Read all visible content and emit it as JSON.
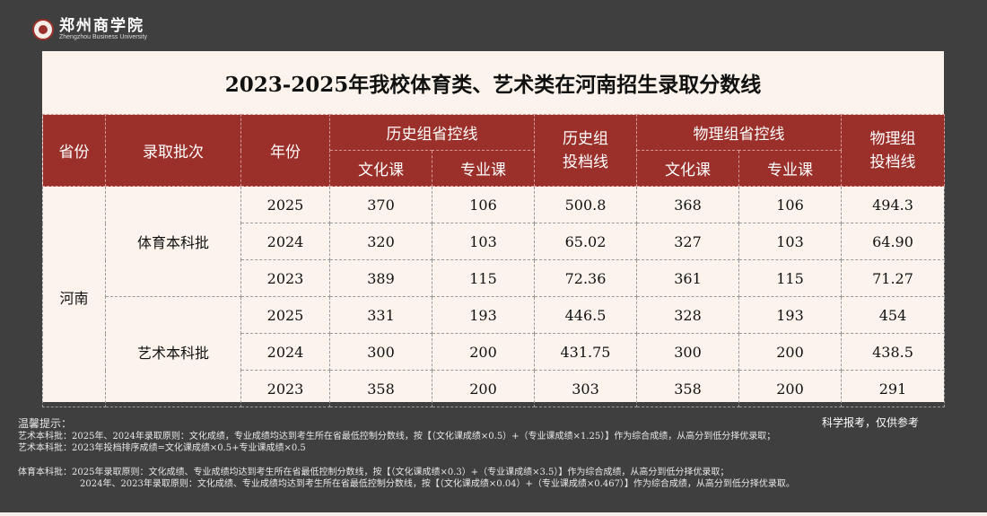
{
  "logo": {
    "name_cn": "郑州商学院",
    "name_en": "Zhengzhou Business University"
  },
  "title": "2023-2025年我校体育类、艺术类在河南招生录取分数线",
  "headers": {
    "province": "省份",
    "batch": "录取批次",
    "year": "年份",
    "history_line": "历史组省控线",
    "history_admit": "历史组投档线",
    "physics_line": "物理组省控线",
    "physics_admit": "物理组投档线",
    "culture": "文化课",
    "major": "专业课"
  },
  "province": "河南",
  "groups": [
    {
      "batch": "体育本科批",
      "rows": [
        {
          "year": "2025",
          "h_c": "370",
          "h_m": "106",
          "h_a": "500.8",
          "p_c": "368",
          "p_m": "106",
          "p_a": "494.3"
        },
        {
          "year": "2024",
          "h_c": "320",
          "h_m": "103",
          "h_a": "65.02",
          "p_c": "327",
          "p_m": "103",
          "p_a": "64.90"
        },
        {
          "year": "2023",
          "h_c": "389",
          "h_m": "115",
          "h_a": "72.36",
          "p_c": "361",
          "p_m": "115",
          "p_a": "71.27"
        }
      ]
    },
    {
      "batch": "艺术本科批",
      "rows": [
        {
          "year": "2025",
          "h_c": "331",
          "h_m": "193",
          "h_a": "446.5",
          "p_c": "328",
          "p_m": "193",
          "p_a": "454"
        },
        {
          "year": "2024",
          "h_c": "300",
          "h_m": "200",
          "h_a": "431.75",
          "p_c": "300",
          "p_m": "200",
          "p_a": "438.5"
        },
        {
          "year": "2023",
          "h_c": "358",
          "h_m": "200",
          "h_a": "303",
          "p_c": "358",
          "p_m": "200",
          "p_a": "291"
        }
      ]
    }
  ],
  "notes": {
    "heading": "温馨提示：",
    "ref": "科学报考，仅供参考",
    "lines": [
      "艺术本科批：2025年、2024年录取原则：文化成绩，专业成绩均达到考生所在省最低控制分数线，按【（文化课成绩×0.5）+（专业课成绩×1.25）】作为综合成绩，从高分到低分择优录取；",
      "艺术本科批：2023年投档排序成绩=文化课成绩×0.5+专业课成绩×0.5",
      "体育本科批：2025年录取原则：文化成绩、专业成绩均达到考生所在省最低控制分数线，按【（文化课成绩×0.3）+（专业课成绩×3.5）】作为综合成绩，从高分到低分择优录取；",
      "2024年、2023年录取原则：文化成绩、专业成绩均达到考生所在省最低控制分数线，按【（文化课成绩×0.04）+（专业课成绩×0.467）】作为综合成绩，从高分到低分择优录取。"
    ]
  },
  "colors": {
    "header_bg": "#9b2f2a",
    "card_bg": "#fcf3ec",
    "page_bg": "#3f3f3f"
  }
}
